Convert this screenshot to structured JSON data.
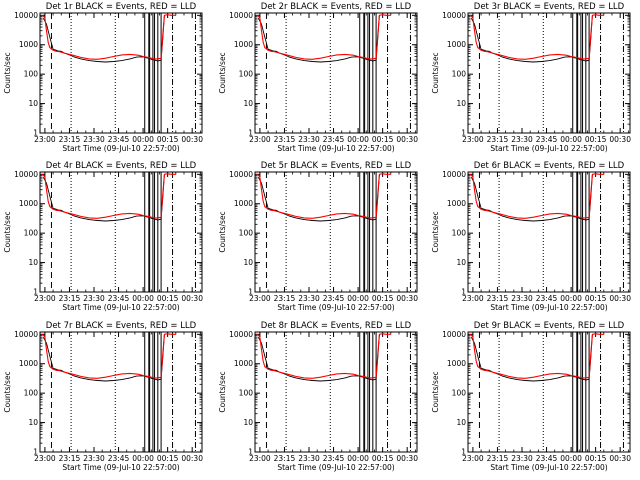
{
  "figure": {
    "panel_titles": [
      "Det 1r BLACK = Events, RED = LLD",
      "Det 2r BLACK = Events, RED = LLD",
      "Det 3r BLACK = Events, RED = LLD",
      "Det 4r BLACK = Events, RED = LLD",
      "Det 5r BLACK = Events, RED = LLD",
      "Det 6r BLACK = Events, RED = LLD",
      "Det 7r BLACK = Events, RED = LLD",
      "Det 8r BLACK = Events, RED = LLD",
      "Det 9r BLACK = Events, RED = LLD"
    ],
    "xlabel": "Start Time (09-Jul-10 22:57:00)",
    "ylabel": "Counts/sec",
    "x_ticks": [
      "23:00",
      "23:15",
      "23:30",
      "23:45",
      "00:00",
      "00:15",
      "00:30"
    ],
    "y_ticks": [
      "1",
      "10",
      "100",
      "1000",
      "10000"
    ],
    "colors": {
      "events": "#000000",
      "lld": "#ff0000",
      "axes": "#000000"
    }
  },
  "chart_data": {
    "type": "line",
    "panels": 9,
    "x_unit": "minutes since 22:57:00",
    "xlim": [
      0,
      99
    ],
    "ylim": [
      1,
      12000
    ],
    "yscale": "log",
    "series": [
      {
        "name": "BLACK = Events",
        "x": [
          2,
          4,
          6,
          8,
          10,
          11,
          13,
          15,
          18,
          21,
          25,
          30,
          35,
          40,
          45,
          50,
          55,
          59,
          62,
          64,
          65,
          66.5,
          67,
          68,
          70,
          72,
          74,
          75,
          76
        ],
        "y": [
          8000,
          5000,
          1800,
          700,
          650,
          620,
          600,
          520,
          450,
          380,
          330,
          290,
          270,
          260,
          270,
          290,
          330,
          380,
          390,
          380,
          360,
          350,
          350,
          320,
          300,
          280,
          300,
          1500,
          10000
        ]
      },
      {
        "name": "RED = LLD",
        "x": [
          1,
          2,
          3,
          4,
          5,
          6,
          8,
          10,
          12,
          15,
          20,
          25,
          30,
          35,
          40,
          45,
          50,
          55,
          60,
          63,
          66,
          68,
          70,
          72,
          74,
          75,
          76,
          78,
          80,
          83
        ],
        "y": [
          10000,
          9500,
          8000,
          3000,
          1200,
          800,
          650,
          600,
          580,
          520,
          440,
          370,
          330,
          320,
          350,
          400,
          450,
          470,
          440,
          400,
          370,
          350,
          330,
          330,
          350,
          2000,
          10000,
          10500,
          10000,
          10000
        ]
      }
    ],
    "vertical_markers": {
      "dashed": [
        7
      ],
      "dotted": [
        19,
        46
      ],
      "solid": [
        64,
        66.5,
        67,
        69,
        70,
        72,
        74
      ],
      "dash_dot": [
        81,
        95
      ]
    }
  }
}
